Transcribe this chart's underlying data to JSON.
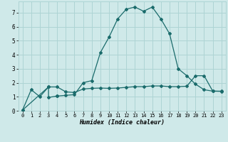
{
  "title": "",
  "xlabel": "Humidex (Indice chaleur)",
  "ylabel": "",
  "background_color": "#cfe9e9",
  "grid_color": "#add4d4",
  "line_color": "#1a6b6b",
  "xlim": [
    -0.5,
    23.5
  ],
  "ylim": [
    0,
    7.8
  ],
  "xticks": [
    0,
    1,
    2,
    3,
    4,
    5,
    6,
    7,
    8,
    9,
    10,
    11,
    12,
    13,
    14,
    15,
    16,
    17,
    18,
    19,
    20,
    21,
    22,
    23
  ],
  "yticks": [
    0,
    1,
    2,
    3,
    4,
    5,
    6,
    7
  ],
  "curve1_x": [
    0,
    1,
    2,
    3,
    3,
    4,
    4,
    5,
    6,
    7,
    8,
    9,
    10,
    11,
    12,
    13,
    14,
    15,
    16,
    17,
    18,
    19,
    20,
    21,
    22,
    23
  ],
  "curve1_y": [
    0.05,
    1.5,
    1.0,
    1.7,
    0.95,
    1.05,
    1.05,
    1.1,
    1.15,
    2.0,
    2.15,
    4.15,
    5.25,
    6.55,
    7.25,
    7.4,
    7.1,
    7.4,
    6.55,
    5.5,
    3.0,
    2.5,
    1.9,
    1.5,
    1.4,
    1.4
  ],
  "curve2_x": [
    0,
    3,
    4,
    5,
    6,
    7,
    8,
    9,
    10,
    11,
    12,
    13,
    14,
    15,
    16,
    17,
    18,
    19,
    20,
    21,
    22,
    23
  ],
  "curve2_y": [
    0.05,
    1.7,
    1.7,
    1.35,
    1.3,
    1.55,
    1.6,
    1.62,
    1.6,
    1.62,
    1.67,
    1.72,
    1.72,
    1.77,
    1.77,
    1.72,
    1.72,
    1.75,
    2.5,
    2.5,
    1.4,
    1.38
  ]
}
